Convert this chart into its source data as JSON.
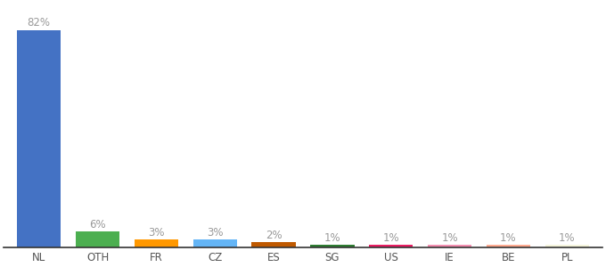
{
  "categories": [
    "NL",
    "OTH",
    "FR",
    "CZ",
    "ES",
    "SG",
    "US",
    "IE",
    "BE",
    "PL"
  ],
  "values": [
    82,
    6,
    3,
    3,
    2,
    1,
    1,
    1,
    1,
    1
  ],
  "labels": [
    "82%",
    "6%",
    "3%",
    "3%",
    "2%",
    "1%",
    "1%",
    "1%",
    "1%",
    "1%"
  ],
  "colors": [
    "#4472c4",
    "#4caf50",
    "#ff9800",
    "#64b5f6",
    "#bf5900",
    "#2e7d32",
    "#e91e63",
    "#f48fb1",
    "#ffab91",
    "#f5f5dc"
  ],
  "ylim": [
    0,
    92
  ],
  "background_color": "#ffffff",
  "label_color": "#999999",
  "label_fontsize": 8.5,
  "tick_fontsize": 8.5,
  "bar_width": 0.75
}
